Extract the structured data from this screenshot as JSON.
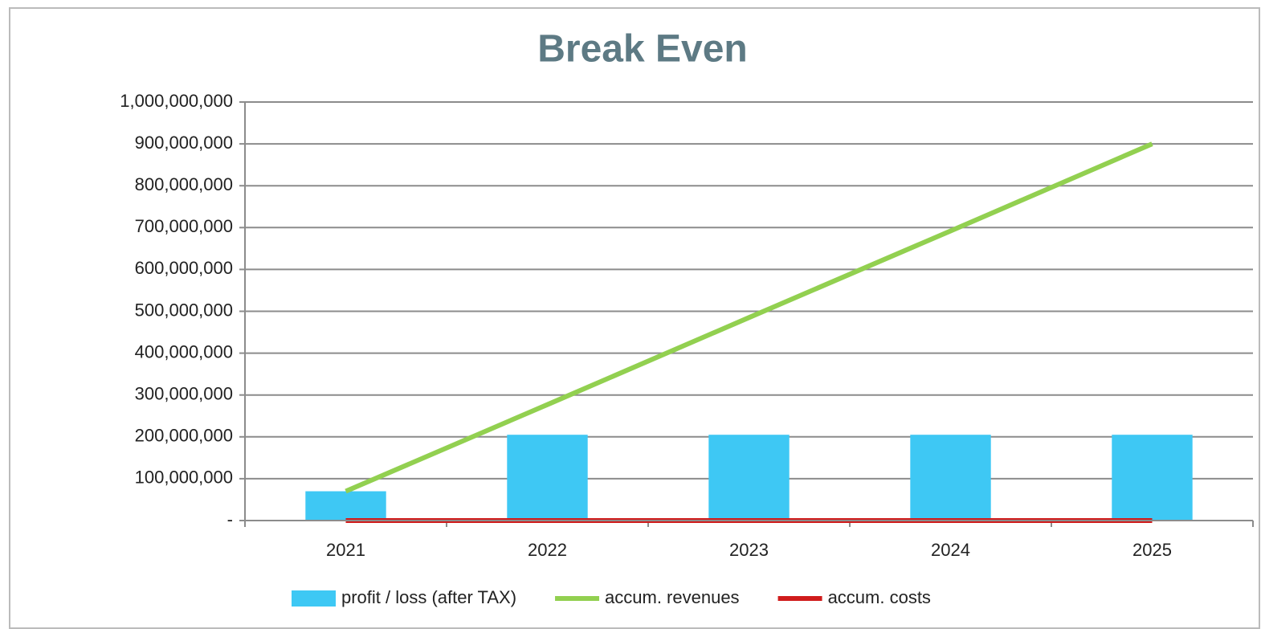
{
  "chart_data": {
    "type": "bar",
    "title": "Break Even",
    "categories": [
      "2021",
      "2022",
      "2023",
      "2024",
      "2025"
    ],
    "series": [
      {
        "name": "profit / loss (after TAX)",
        "type": "bar",
        "color": "#3ec8f4",
        "values": [
          70000000,
          205000000,
          205000000,
          205000000,
          205000000
        ]
      },
      {
        "name": "accum. revenues",
        "type": "line",
        "color": "#92d050",
        "values": [
          70000000,
          277000000,
          485000000,
          692000000,
          900000000
        ]
      },
      {
        "name": "accum. costs",
        "type": "line",
        "color": "#d01c1c",
        "values": [
          0,
          0,
          0,
          0,
          0
        ]
      }
    ],
    "ylim": [
      0,
      1000000000
    ],
    "yticks": [
      {
        "value": 0,
        "label": "-"
      },
      {
        "value": 100000000,
        "label": "100,000,000"
      },
      {
        "value": 200000000,
        "label": "200,000,000"
      },
      {
        "value": 300000000,
        "label": "300,000,000"
      },
      {
        "value": 400000000,
        "label": "400,000,000"
      },
      {
        "value": 500000000,
        "label": "500,000,000"
      },
      {
        "value": 600000000,
        "label": "600,000,000"
      },
      {
        "value": 700000000,
        "label": "700,000,000"
      },
      {
        "value": 800000000,
        "label": "800,000,000"
      },
      {
        "value": 900000000,
        "label": "900,000,000"
      },
      {
        "value": 1000000000,
        "label": "1,000,000,000"
      }
    ],
    "grid": true,
    "legend": "bottom"
  }
}
